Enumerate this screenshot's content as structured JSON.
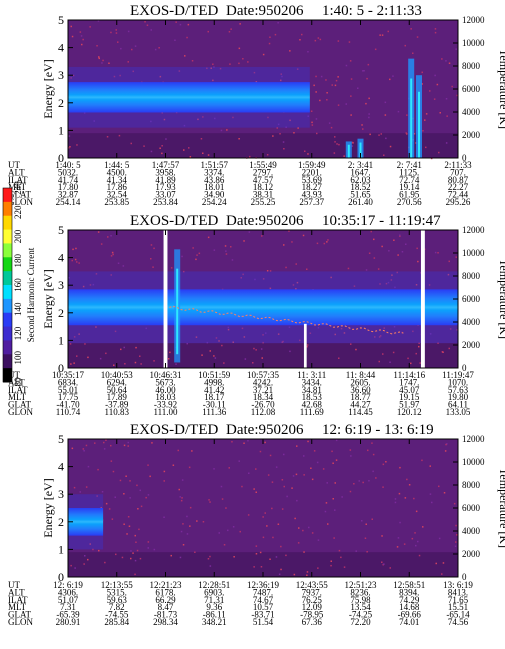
{
  "colors": {
    "background": "#ffffff",
    "spectrogram_background": "#5c1f7a",
    "band_outer": "#2a3cf5",
    "band_mid": "#1e96ff",
    "band_core": "#00e0ff",
    "data_gap": "#ffffff"
  },
  "colorbar": {
    "label": "Second Harmonic Current",
    "ticks": [
      "240",
      "220",
      "200",
      "180",
      "160",
      "140",
      "120",
      "100",
      "80"
    ],
    "colors": [
      "#ff1a1a",
      "#ff7f00",
      "#ffd800",
      "#ffff33",
      "#8bff3b",
      "#14d714",
      "#00c89a",
      "#00e0ff",
      "#1e96ff",
      "#2a3cf5",
      "#3c2cd0",
      "#501ea0",
      "#3c1060",
      "#000000"
    ]
  },
  "chart_data": [
    {
      "type": "heatmap",
      "title": "EXOS-D/TED",
      "date": "Date:950206",
      "time_range": "1:40: 5 - 2:11:33",
      "ylabel": "Energy [eV]",
      "ylabel_right": "Temperature [K]",
      "ylim": [
        0,
        5
      ],
      "y_ticks": [
        "5",
        "4",
        "3",
        "2",
        "1",
        "0"
      ],
      "y_right_ticks": [
        "12000",
        "10000",
        "8000",
        "6000",
        "4000",
        "2000",
        "0"
      ],
      "band": {
        "center_energy": 2.2,
        "width_energy": 1.1,
        "ends_fraction": 0.62
      },
      "gaps": [],
      "table": {
        "labels": [
          "UT",
          "ALT",
          "ILAT",
          "MLT",
          "GLAT",
          "GLON"
        ],
        "columns": [
          [
            "1:40: 5",
            "5032.",
            "41.74",
            "17.80",
            "32.87",
            "254.14"
          ],
          [
            "1:44: 5",
            "4500.",
            "41.34",
            "17.86",
            "32.54",
            "253.85"
          ],
          [
            "1:47:57",
            "3958.",
            "41.89",
            "17.93",
            "33.07",
            "253.84"
          ],
          [
            "1:51:57",
            "3374.",
            "43.86",
            "18.01",
            "34.90",
            "254.24"
          ],
          [
            "1:55:49",
            "2797.",
            "47.57",
            "18.12",
            "38.31",
            "255.25"
          ],
          [
            "1:59:49",
            "2201.",
            "53.69",
            "18.27",
            "43.93",
            "257.37"
          ],
          [
            "2: 3:41",
            "1647.",
            "62.03",
            "18.52",
            "51.65",
            "261.40"
          ],
          [
            "2: 7:41",
            "1125.",
            "72.74",
            "19.14",
            "61.95",
            "270.56"
          ],
          [
            "2:11:33",
            "707.",
            "80.87",
            "22.27",
            "72.44",
            "295.26"
          ]
        ]
      }
    },
    {
      "type": "heatmap",
      "title": "EXOS-D/TED",
      "date": "Date:950206",
      "time_range": "10:35:17 - 11:19:47",
      "ylabel": "Energy [eV]",
      "ylabel_right": "Temperature [K]",
      "ylim": [
        0,
        5
      ],
      "y_ticks": [
        "5",
        "4",
        "3",
        "2",
        "1",
        "0"
      ],
      "y_right_ticks": [
        "12000",
        "10000",
        "8000",
        "6000",
        "4000",
        "2000",
        "0"
      ],
      "band": {
        "center_energy": 2.2,
        "width_energy": 1.3,
        "ends_fraction": 1.0
      },
      "gaps": [
        {
          "start_fraction": 0.245,
          "end_fraction": 0.255
        },
        {
          "start_fraction": 0.605,
          "end_fraction": 0.612
        },
        {
          "start_fraction": 0.905,
          "end_fraction": 0.915
        }
      ],
      "table": {
        "labels": [
          "UT",
          "ALT",
          "ILAT",
          "MLT",
          "GLAT",
          "GLON"
        ],
        "columns": [
          [
            "10:35:17",
            "6834.",
            "55.01",
            "17.75",
            "-41.70",
            "110.74"
          ],
          [
            "10:40:53",
            "6294.",
            "50.64",
            "17.89",
            "-37.89",
            "110.83"
          ],
          [
            "10:46:31",
            "5673.",
            "46.00",
            "18.03",
            "-33.92",
            "111.00"
          ],
          [
            "10:51:59",
            "4998.",
            "41.42",
            "18.17",
            "-30.11",
            "111.36"
          ],
          [
            "10:57:35",
            "4242.",
            "37.21",
            "18.34",
            "-26.70",
            "112.08"
          ],
          [
            "11: 3:11",
            "3434.",
            "34.81",
            "18.53",
            "42.68",
            "111.69"
          ],
          [
            "11: 8:44",
            "2605.",
            "36.60",
            "18.77",
            "44.27",
            "114.45"
          ],
          [
            "11:14:16",
            "1747.",
            "45.07",
            "19.15",
            "51.97",
            "120.12"
          ],
          [
            "11:19:47",
            "1070.",
            "57.63",
            "19.80",
            "64.11",
            "133.05"
          ]
        ]
      }
    },
    {
      "type": "heatmap",
      "title": "EXOS-D/TED",
      "date": "Date:950206",
      "time_range": "12: 6:19 - 13: 6:19",
      "ylabel": "Energy [eV]",
      "ylabel_right": "Temperature [K]",
      "ylim": [
        0,
        5
      ],
      "y_ticks": [
        "5",
        "4",
        "3",
        "2",
        "1",
        "0"
      ],
      "y_right_ticks": [
        "12000",
        "10000",
        "8000",
        "6000",
        "4000",
        "2000",
        "0"
      ],
      "band": {
        "center_energy": 2.0,
        "width_energy": 1.0,
        "ends_fraction": 0.09
      },
      "gaps": [],
      "table": {
        "labels": [
          "UT",
          "ALT",
          "ILAT",
          "MLT",
          "GLAT",
          "GLON"
        ],
        "columns": [
          [
            "12: 6:19",
            "4306.",
            "51.07",
            "7.31",
            "-65.39",
            "280.91"
          ],
          [
            "12:13:55",
            "5315.",
            "59.63",
            "7.82",
            "-74.55",
            "285.84"
          ],
          [
            "12:21:23",
            "6178.",
            "66.29",
            "8.47",
            "-81.73",
            "298.34"
          ],
          [
            "12:28:51",
            "6903.",
            "71.31",
            "9.36",
            "-86.11",
            "348.21"
          ],
          [
            "12:36:19",
            "7487.",
            "74.67",
            "10.57",
            "-83.71",
            "51.54"
          ],
          [
            "12:43:55",
            "7937.",
            "76.25",
            "12.09",
            "-78.95",
            "67.36"
          ],
          [
            "12:51:23",
            "8236.",
            "75.98",
            "13.54",
            "-74.25",
            "72.20"
          ],
          [
            "12:58:51",
            "8394.",
            "74.29",
            "14.68",
            "-69.66",
            "74.01"
          ],
          [
            "13: 6:19",
            "8413.",
            "71.65",
            "15.51",
            "-65.14",
            "74.56"
          ]
        ]
      }
    }
  ]
}
